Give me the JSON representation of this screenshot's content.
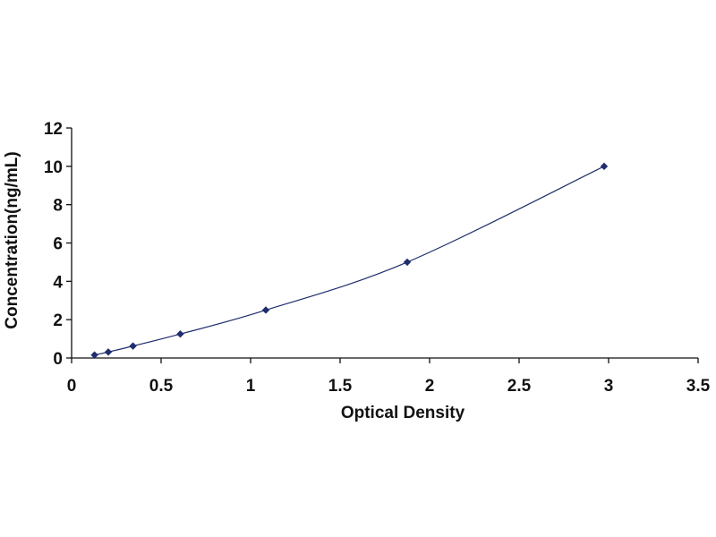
{
  "chart_data": {
    "type": "scatter",
    "title": "",
    "xlabel": "Optical Density",
    "ylabel": "Concentration(ng/mL)",
    "xlim": [
      0,
      3.5
    ],
    "ylim": [
      0,
      12
    ],
    "x_ticks": [
      "0",
      "0.5",
      "1",
      "1.5",
      "2",
      "2.5",
      "3",
      "3.5"
    ],
    "y_ticks": [
      "0",
      "2",
      "4",
      "6",
      "8",
      "10",
      "12"
    ],
    "grid": false,
    "legend": "none",
    "trendline": "smooth",
    "series": [
      {
        "x": [
          0.128,
          0.205,
          0.343,
          0.607,
          1.085,
          1.875,
          2.975
        ],
        "y": [
          0.156,
          0.312,
          0.625,
          1.25,
          2.5,
          5,
          10
        ],
        "marker": "diamond",
        "color": "#1f2d6e"
      }
    ],
    "colors": {
      "axis": "#111111",
      "line": "#1f2d6e",
      "marker": "#1f2d6e"
    }
  }
}
